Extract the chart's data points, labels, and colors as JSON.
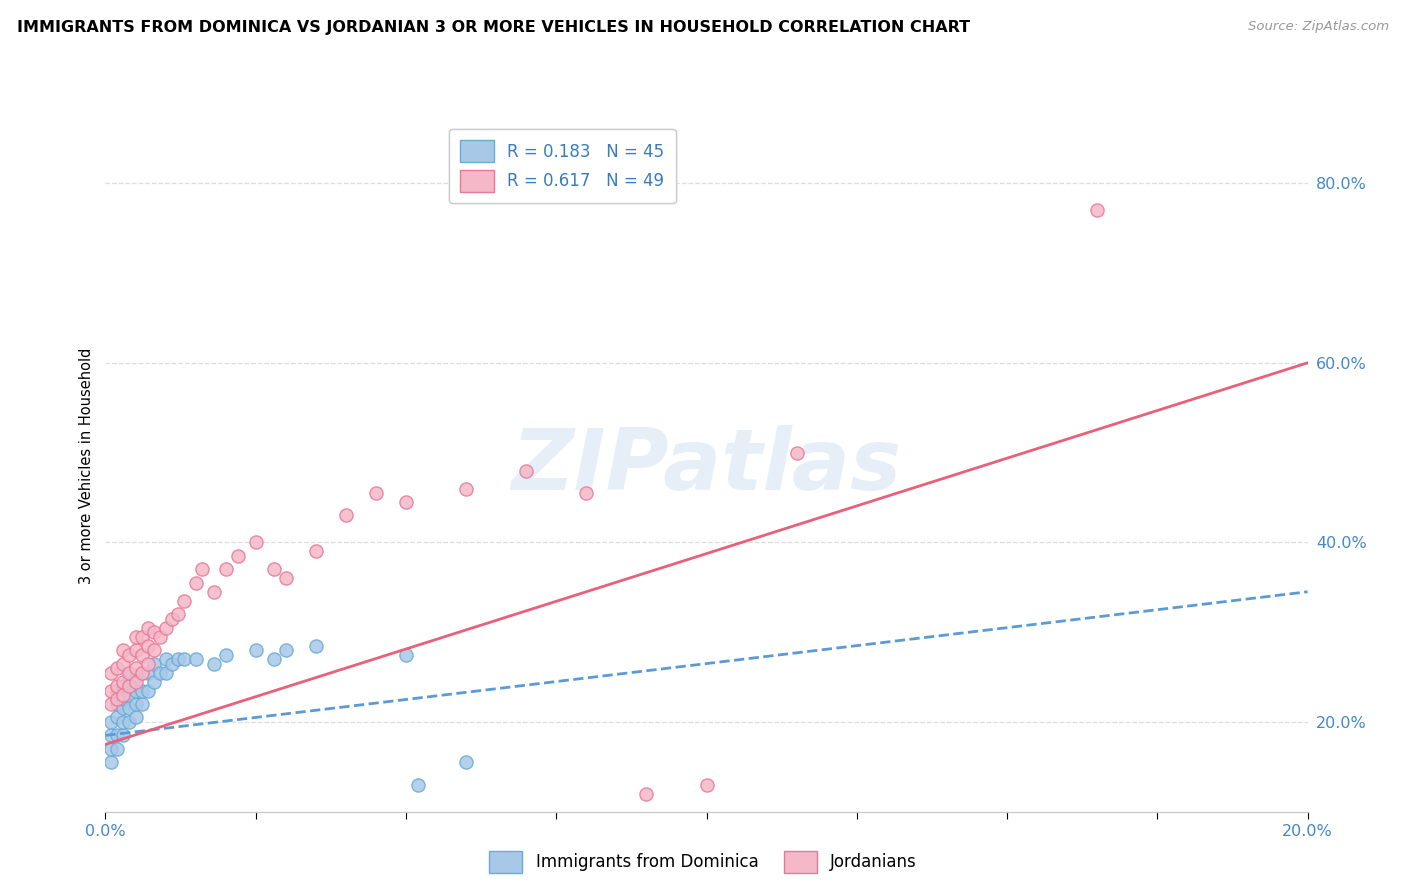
{
  "title": "IMMIGRANTS FROM DOMINICA VS JORDANIAN 3 OR MORE VEHICLES IN HOUSEHOLD CORRELATION CHART",
  "source": "Source: ZipAtlas.com",
  "ylabel": "3 or more Vehicles in Household",
  "watermark": "ZIPatlas",
  "blue_color": "#a8c8e8",
  "pink_color": "#f4b8c8",
  "blue_edge_color": "#6aaad4",
  "pink_edge_color": "#e87898",
  "blue_line_color": "#5b9bd5",
  "pink_line_color": "#e8607a",
  "xlim": [
    0.0,
    0.2
  ],
  "ylim": [
    0.1,
    0.87
  ],
  "yticks": [
    0.2,
    0.4,
    0.6,
    0.8
  ],
  "xticks": [
    0.0,
    0.025,
    0.05,
    0.075,
    0.1,
    0.125,
    0.15,
    0.175,
    0.2
  ],
  "legend_r1": "R = 0.183   N = 45",
  "legend_r2": "R = 0.617   N = 49",
  "legend_series1": "Immigrants from Dominica",
  "legend_series2": "Jordanians",
  "blue_scatter_x": [
    0.001,
    0.001,
    0.001,
    0.001,
    0.002,
    0.002,
    0.002,
    0.002,
    0.002,
    0.003,
    0.003,
    0.003,
    0.003,
    0.003,
    0.004,
    0.004,
    0.004,
    0.004,
    0.005,
    0.005,
    0.005,
    0.005,
    0.006,
    0.006,
    0.006,
    0.007,
    0.007,
    0.008,
    0.008,
    0.009,
    0.01,
    0.01,
    0.011,
    0.012,
    0.013,
    0.015,
    0.018,
    0.02,
    0.025,
    0.028,
    0.03,
    0.035,
    0.05,
    0.052,
    0.06
  ],
  "blue_scatter_y": [
    0.155,
    0.17,
    0.185,
    0.2,
    0.17,
    0.185,
    0.205,
    0.22,
    0.235,
    0.185,
    0.2,
    0.215,
    0.225,
    0.24,
    0.2,
    0.215,
    0.23,
    0.25,
    0.205,
    0.22,
    0.235,
    0.25,
    0.22,
    0.235,
    0.255,
    0.235,
    0.255,
    0.245,
    0.265,
    0.255,
    0.255,
    0.27,
    0.265,
    0.27,
    0.27,
    0.27,
    0.265,
    0.275,
    0.28,
    0.27,
    0.28,
    0.285,
    0.275,
    0.13,
    0.155
  ],
  "pink_scatter_x": [
    0.001,
    0.001,
    0.001,
    0.002,
    0.002,
    0.002,
    0.003,
    0.003,
    0.003,
    0.003,
    0.004,
    0.004,
    0.004,
    0.005,
    0.005,
    0.005,
    0.005,
    0.006,
    0.006,
    0.006,
    0.007,
    0.007,
    0.007,
    0.008,
    0.008,
    0.009,
    0.01,
    0.011,
    0.012,
    0.013,
    0.015,
    0.016,
    0.018,
    0.02,
    0.022,
    0.025,
    0.028,
    0.03,
    0.035,
    0.04,
    0.045,
    0.05,
    0.06,
    0.07,
    0.08,
    0.09,
    0.1,
    0.115,
    0.165
  ],
  "pink_scatter_y": [
    0.22,
    0.235,
    0.255,
    0.225,
    0.24,
    0.26,
    0.23,
    0.245,
    0.265,
    0.28,
    0.24,
    0.255,
    0.275,
    0.245,
    0.26,
    0.28,
    0.295,
    0.255,
    0.275,
    0.295,
    0.265,
    0.285,
    0.305,
    0.28,
    0.3,
    0.295,
    0.305,
    0.315,
    0.32,
    0.335,
    0.355,
    0.37,
    0.345,
    0.37,
    0.385,
    0.4,
    0.37,
    0.36,
    0.39,
    0.43,
    0.455,
    0.445,
    0.46,
    0.48,
    0.455,
    0.12,
    0.13,
    0.5,
    0.77
  ],
  "blue_trend_x": [
    0.0,
    0.2
  ],
  "blue_trend_y": [
    0.185,
    0.345
  ],
  "pink_trend_x": [
    0.0,
    0.2
  ],
  "pink_trend_y": [
    0.175,
    0.6
  ]
}
